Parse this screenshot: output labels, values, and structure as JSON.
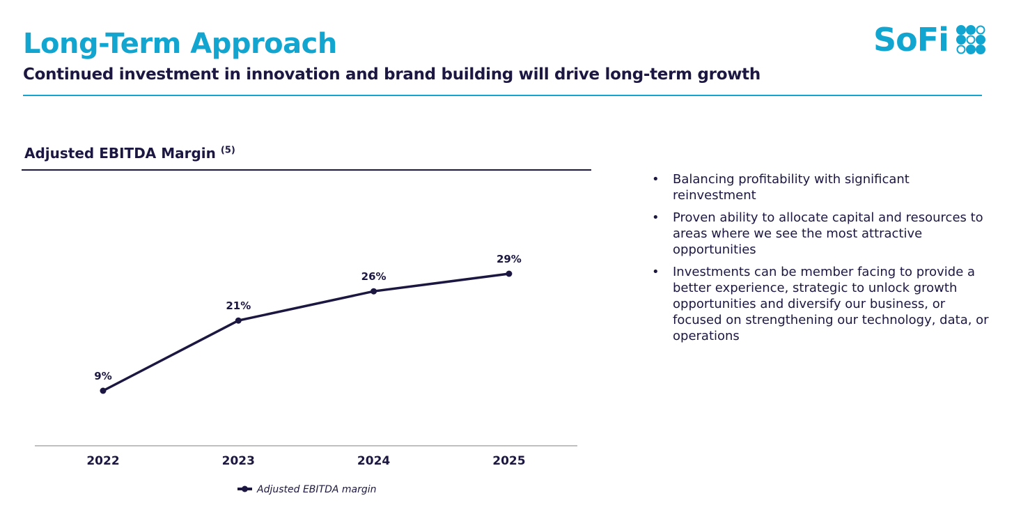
{
  "header": {
    "title": "Long-Term Approach",
    "subtitle": "Continued investment in innovation and brand building will drive long-term growth",
    "logo_text": "SoFi"
  },
  "colors": {
    "brand": "#11a5cf",
    "navy": "#1b1741",
    "axis": "#999999"
  },
  "chart_data": {
    "type": "line",
    "title": "Adjusted EBITDA Margin",
    "title_footnote": "(5)",
    "categories": [
      "2022",
      "2023",
      "2024",
      "2025"
    ],
    "series": [
      {
        "name": "Adjusted EBITDA margin",
        "values": [
          9,
          21,
          26,
          29
        ],
        "labels": [
          "9%",
          "21%",
          "26%",
          "29%"
        ]
      }
    ],
    "xlabel": "",
    "ylabel": "",
    "ylim": [
      0,
      32
    ],
    "grid": false,
    "legend": "bottom-center"
  },
  "bullets": [
    "Balancing profitability with significant reinvestment",
    "Proven ability to allocate capital and resources to areas where we see the most attractive opportunities",
    "Investments can be member facing to provide a better experience, strategic to unlock growth opportunities and diversify our business, or focused on strengthening our technology, data, or operations"
  ]
}
